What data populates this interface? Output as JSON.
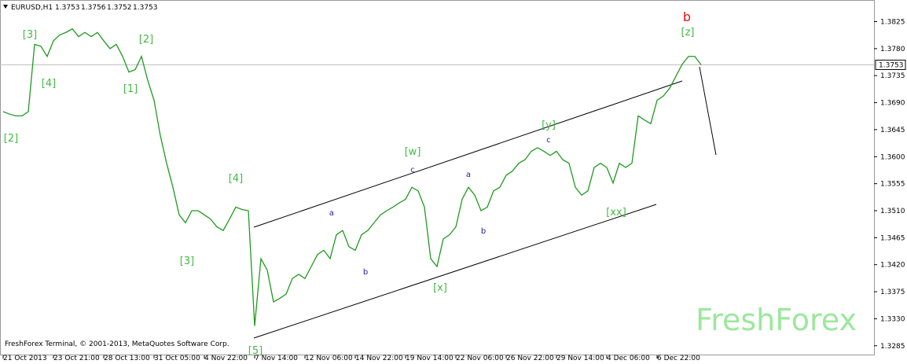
{
  "chart_data": {
    "type": "line",
    "symbol": "EURUSD,H1",
    "ohlc": [
      1.3753,
      1.3756,
      1.3752,
      1.3753
    ],
    "footer": "FreshForex Terminal, © 2001-2013, MetaQuotes Software Corp.",
    "watermark": "FreshForex",
    "categories": [
      "21 Oct 2013",
      null,
      null,
      null,
      null,
      null,
      null,
      null,
      "23 Oct 21:00",
      null,
      null,
      null,
      null,
      null,
      null,
      null,
      "28 Oct 13:00",
      null,
      null,
      null,
      null,
      null,
      null,
      null,
      "31 Oct 05:00",
      null,
      null,
      null,
      null,
      null,
      null,
      null,
      "4 Nov 22:00",
      null,
      null,
      null,
      null,
      null,
      null,
      null,
      "7 Nov 14:00",
      null,
      null,
      null,
      null,
      null,
      null,
      null,
      "12 Nov 06:00",
      null,
      null,
      null,
      null,
      null,
      null,
      null,
      "14 Nov 22:00",
      null,
      null,
      null,
      null,
      null,
      null,
      null,
      "19 Nov 14:00",
      null,
      null,
      null,
      null,
      null,
      null,
      null,
      "22 Nov 06:00",
      null,
      null,
      null,
      null,
      null,
      null,
      null,
      "26 Nov 22:00",
      null,
      null,
      null,
      null,
      null,
      null,
      null,
      "29 Nov 14:00",
      null,
      null,
      null,
      null,
      null,
      null,
      null,
      "4 Dec 06:00",
      null,
      null,
      null,
      null,
      null,
      null,
      null,
      "6 Dec 22:00",
      null,
      null,
      null,
      null,
      null,
      null,
      null
    ],
    "series": [
      {
        "color": "#1f9a1f",
        "values": [
          1.3675,
          1.3671,
          1.3668,
          1.3668,
          1.3675,
          1.3787,
          1.3784,
          1.3767,
          1.3793,
          1.3803,
          1.3807,
          1.3813,
          1.38,
          1.3807,
          1.38,
          1.3807,
          1.3793,
          1.378,
          1.3787,
          1.3767,
          1.3741,
          1.3745,
          1.3767,
          1.3727,
          1.3694,
          1.3635,
          1.3589,
          1.3549,
          1.3503,
          1.349,
          1.351,
          1.351,
          1.3503,
          1.3496,
          1.3483,
          1.3477,
          1.3496,
          1.3516,
          1.3512,
          1.351,
          1.3318,
          1.343,
          1.3411,
          1.3358,
          1.3364,
          1.3371,
          1.3397,
          1.3404,
          1.3397,
          1.3417,
          1.3437,
          1.3444,
          1.343,
          1.347,
          1.3477,
          1.345,
          1.3444,
          1.347,
          1.3477,
          1.349,
          1.3503,
          1.351,
          1.3516,
          1.3523,
          1.3529,
          1.3549,
          1.3543,
          1.3516,
          1.343,
          1.3417,
          1.3463,
          1.347,
          1.3483,
          1.3529,
          1.3549,
          1.3536,
          1.351,
          1.3516,
          1.3543,
          1.3549,
          1.3569,
          1.3576,
          1.3589,
          1.3595,
          1.3609,
          1.3615,
          1.3609,
          1.3602,
          1.3609,
          1.3595,
          1.3589,
          1.3549,
          1.3536,
          1.3543,
          1.3582,
          1.3589,
          1.3582,
          1.3556,
          1.3589,
          1.3582,
          1.3589,
          1.3668,
          1.3661,
          1.3655,
          1.3694,
          1.3701,
          1.3714,
          1.3734,
          1.3754,
          1.3767,
          1.3767,
          1.3753
        ]
      }
    ],
    "ylim": [
      1.3269,
      1.3861
    ],
    "yticks": [
      1.3825,
      {
        "value": 1.378,
        "label": "1.3780"
      },
      1.3735,
      {
        "value": 1.369,
        "label": "1.3690"
      },
      1.3645,
      {
        "value": 1.36,
        "label": "1.3600"
      },
      1.3555,
      {
        "value": 1.351,
        "label": "1.3510"
      },
      1.3465,
      {
        "value": 1.342,
        "label": "1.3420"
      },
      1.3375,
      {
        "value": 1.333,
        "label": "1.3330"
      },
      1.3285
    ],
    "annotations": [
      {
        "text": "[3]",
        "color": "#44bb44"
      },
      {
        "text": "[4]",
        "color": "#44bb44"
      },
      {
        "text": "[2]",
        "color": "#44bb44"
      },
      {
        "text": "[2]",
        "color": "#44bb44"
      },
      {
        "text": "[1]",
        "color": "#44bb44"
      },
      {
        "text": "[3]",
        "color": "#44bb44"
      },
      {
        "text": "[4]",
        "color": "#44bb44"
      },
      {
        "text": "[5]",
        "color": "#44bb44"
      },
      {
        "text": "a",
        "color": "#1a1aa6"
      },
      {
        "text": "b",
        "color": "#1a1aa6"
      },
      {
        "text": "c",
        "color": "#1a1aa6"
      },
      {
        "text": "[w]",
        "color": "#44bb44"
      },
      {
        "text": "[x]",
        "color": "#44bb44"
      },
      {
        "text": "a",
        "color": "#1a1aa6"
      },
      {
        "text": "b",
        "color": "#1a1aa6"
      },
      {
        "text": "c",
        "color": "#1a1aa6"
      },
      {
        "text": "[y]",
        "color": "#44bb44"
      },
      {
        "text": "[xx]",
        "color": "#44bb44"
      },
      {
        "text": "[z]",
        "color": "#44bb44"
      },
      {
        "text": "b",
        "color": "#dd1111"
      }
    ]
  }
}
